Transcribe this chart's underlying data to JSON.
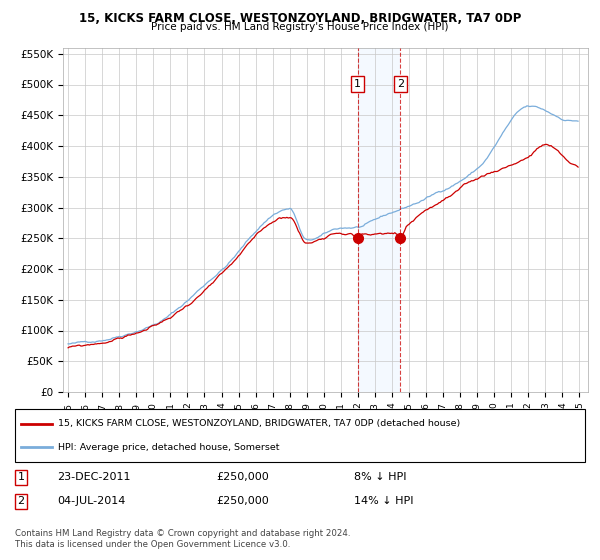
{
  "title": "15, KICKS FARM CLOSE, WESTONZOYLAND, BRIDGWATER, TA7 0DP",
  "subtitle": "Price paid vs. HM Land Registry's House Price Index (HPI)",
  "legend_line1": "15, KICKS FARM CLOSE, WESTONZOYLAND, BRIDGWATER, TA7 0DP (detached house)",
  "legend_line2": "HPI: Average price, detached house, Somerset",
  "point1_label": "23-DEC-2011",
  "point1_price": "£250,000",
  "point1_pct": "8% ↓ HPI",
  "point2_label": "04-JUL-2014",
  "point2_price": "£250,000",
  "point2_pct": "14% ↓ HPI",
  "footnote": "Contains HM Land Registry data © Crown copyright and database right 2024.\nThis data is licensed under the Open Government Licence v3.0.",
  "red_color": "#cc0000",
  "blue_color": "#7aaddb",
  "shade_color": "#ddeeff",
  "point1_x": 2011.98,
  "point2_x": 2014.5,
  "point1_y": 250000,
  "point2_y": 250000,
  "ylim": [
    0,
    560000
  ],
  "xlim": [
    1994.7,
    2025.5
  ]
}
